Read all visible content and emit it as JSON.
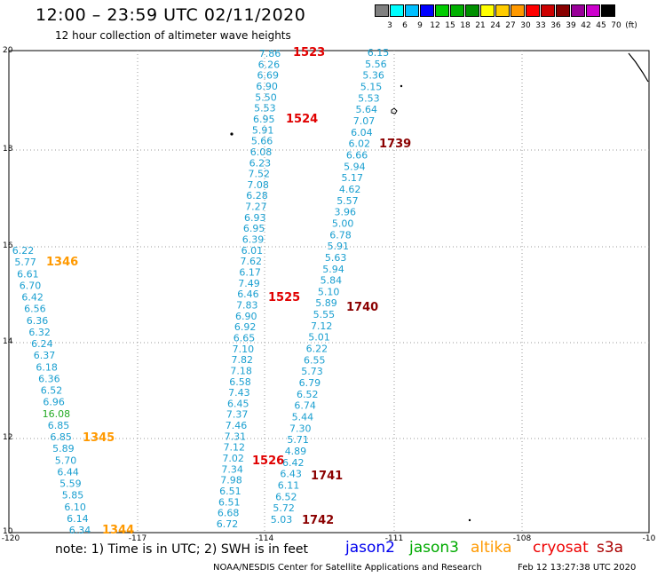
{
  "header": {
    "title": "12:00 – 23:59 UTC 02/11/2020",
    "subtitle": "12 hour collection of altimeter wave heights"
  },
  "legend": {
    "colors": [
      "#808080",
      "#00ffff",
      "#00bfff",
      "#0000ff",
      "#00cc00",
      "#00b000",
      "#009000",
      "#ffff00",
      "#ffcc00",
      "#ff9900",
      "#ff0000",
      "#cc0000",
      "#880000",
      "#990099",
      "#cc00cc",
      "#000000"
    ],
    "labels": [
      "3",
      "6",
      "9",
      "12",
      "15",
      "18",
      "21",
      "24",
      "27",
      "30",
      "33",
      "36",
      "39",
      "42",
      "45",
      "70",
      "(ft)"
    ]
  },
  "axes": {
    "x_ticks": [
      "-120",
      "-117",
      "-114",
      "-111",
      "-108",
      "-10"
    ],
    "y_ticks": [
      "20",
      "18",
      "16",
      "14",
      "12",
      "10"
    ]
  },
  "colors": {
    "swh_text": "#1a9fd0",
    "jason3_swh": "#22aa22",
    "jason2": "#0000ee",
    "jason3": "#00aa00",
    "altika": "#ff9900",
    "cryosat": "#ee0000",
    "s3a": "#aa0000",
    "grid": "#9a9a9a",
    "coast": "#000000"
  },
  "tracks": [
    {
      "id": "1523",
      "color": "#e00000",
      "values": [
        "7.86",
        "6.26",
        "6.69",
        "6.90",
        "5.50",
        "5.53",
        "6.95",
        "5.91",
        "5.66",
        "6.08",
        "6.23",
        "7.52",
        "7.08",
        "6.28",
        "7.27",
        "6.93",
        "6.95",
        "6.39",
        "6.01",
        "7.62",
        "6.17",
        "7.49",
        "6.46",
        "7.83",
        "6.90",
        "6.92",
        "6.65",
        "7.10",
        "7.82",
        "7.18",
        "6.58",
        "7.43",
        "6.45",
        "7.37",
        "7.46",
        "7.31",
        "7.12",
        "7.02",
        "7.34",
        "7.98",
        "6.51",
        "6.51",
        "6.68",
        "6.72"
      ]
    },
    {
      "id": "1524",
      "color": "#e00000"
    },
    {
      "id": "1525",
      "color": "#e00000"
    },
    {
      "id": "1526",
      "color": "#e00000"
    },
    {
      "id": "1739",
      "color": "#8b0000",
      "values": [
        "6.15",
        "5.56",
        "5.36",
        "5.15",
        "5.53",
        "5.64",
        "7.07",
        "6.04",
        "6.02",
        "6.66",
        "5.94",
        "5.17",
        "4.62",
        "5.57",
        "3.96",
        "5.00",
        "6.78",
        "5.91",
        "5.63",
        "5.94",
        "5.84",
        "5.10",
        "5.89",
        "5.55",
        "7.12",
        "5.01",
        "6.22",
        "6.55",
        "5.73",
        "6.79",
        "6.52",
        "6.74",
        "5.44",
        "7.30",
        "5.71",
        "4.89",
        "6.42",
        "6.43",
        "6.11",
        "6.52",
        "5.72",
        "5.03"
      ]
    },
    {
      "id": "1740",
      "color": "#8b0000"
    },
    {
      "id": "1741",
      "color": "#8b0000"
    },
    {
      "id": "1742",
      "color": "#8b0000"
    },
    {
      "id": "1346",
      "color": "#ff9900",
      "values": [
        "6.22",
        "5.77",
        "6.61",
        "6.70",
        "6.42",
        "6.56",
        "6.36",
        "6.32",
        "6.24",
        "6.37",
        "6.18",
        "6.36",
        "6.52",
        "6.96",
        "16.08",
        "6.85",
        "6.85",
        "5.89",
        "5.70",
        "6.44",
        "5.59",
        "5.85",
        "6.10",
        "6.14",
        "6.34"
      ]
    },
    {
      "id": "1345",
      "color": "#ff9900"
    },
    {
      "id": "1344",
      "color": "#ff9900"
    }
  ],
  "footer": {
    "note": "note: 1) Time is in UTC; 2) SWH is in feet",
    "missions": [
      "jason2",
      "jason3",
      "altika",
      "cryosat",
      "s3a"
    ],
    "credit": "NOAA/NESDIS Center for Satellite Applications and Research",
    "timestamp": "Feb 12 13:27:38 UTC 2020"
  }
}
